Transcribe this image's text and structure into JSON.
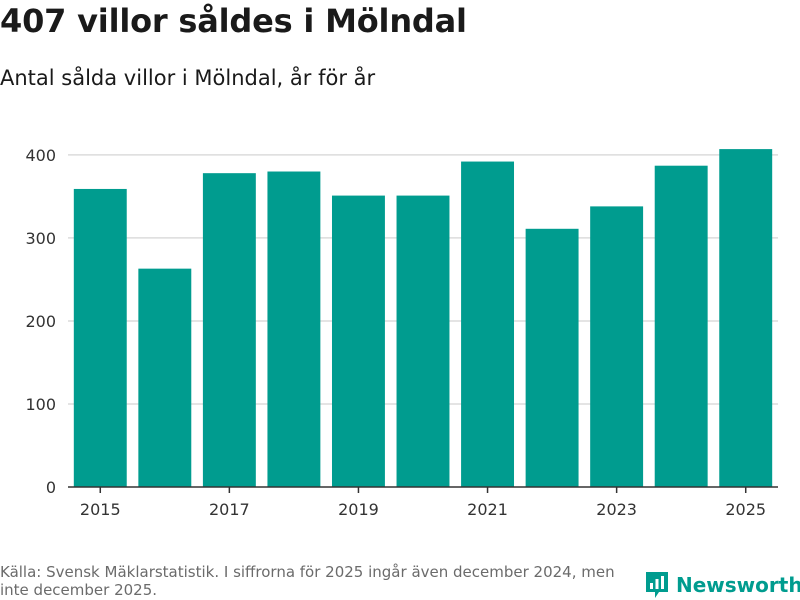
{
  "title": "407 villor såldes i Mölndal",
  "subtitle": "Antal sålda villor i Mölndal, år för år",
  "source": "Källa: Svensk Mäklarstatistik. I siffrorna för 2025 ingår även december 2024, men inte december 2025.",
  "brand": {
    "name": "Newsworthy",
    "color": "#009c8f"
  },
  "chart_data": {
    "type": "bar",
    "title": "407 villor såldes i Mölndal",
    "subtitle": "Antal sålda villor i Mölndal, år för år",
    "xlabel": "",
    "ylabel": "",
    "categories": [
      "2015",
      "2016",
      "2017",
      "2018",
      "2019",
      "2020",
      "2021",
      "2022",
      "2023",
      "2024",
      "2025"
    ],
    "values": [
      359,
      263,
      378,
      380,
      351,
      351,
      392,
      311,
      338,
      387,
      407
    ],
    "x_tick_labels": [
      "2015",
      "2017",
      "2019",
      "2021",
      "2023",
      "2025"
    ],
    "y_ticks": [
      0,
      100,
      200,
      300,
      400
    ],
    "ylim": [
      0,
      430
    ],
    "grid": true,
    "bar_color": "#009c8f"
  }
}
